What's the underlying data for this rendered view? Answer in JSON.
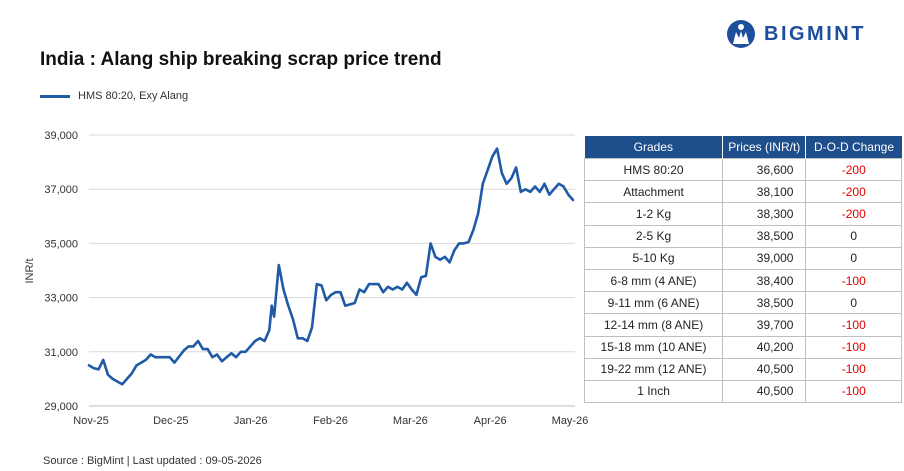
{
  "title": "India : Alang ship breaking scrap price trend",
  "brand": "BIGMINT",
  "source": "Source : BigMint | Last updated : 09-05-2026",
  "colors": {
    "series": "#1f5aa6",
    "header": "#1f4e8c",
    "negative": "#e00000"
  },
  "chart_data": {
    "type": "line",
    "ylabel": "INR/t",
    "ylim": [
      29000,
      39000
    ],
    "yticks": [
      "29,000",
      "31,000",
      "33,000",
      "35,000",
      "37,000",
      "39,000"
    ],
    "xticks": [
      "Nov-25",
      "Dec-25",
      "Jan-26",
      "Feb-26",
      "Mar-26",
      "Apr-26",
      "May-26"
    ],
    "legend_position": "top-left",
    "grid": "horizontal",
    "series": [
      {
        "name": "HMS 80:20, Exy Alang",
        "points": [
          [
            0,
            30500
          ],
          [
            1,
            30400
          ],
          [
            2,
            30350
          ],
          [
            3,
            30700
          ],
          [
            4,
            30150
          ],
          [
            5,
            30000
          ],
          [
            6,
            29900
          ],
          [
            7,
            29800
          ],
          [
            9,
            30200
          ],
          [
            10,
            30500
          ],
          [
            11,
            30600
          ],
          [
            12,
            30700
          ],
          [
            13,
            30900
          ],
          [
            14,
            30800
          ],
          [
            16,
            30800
          ],
          [
            17,
            30800
          ],
          [
            18,
            30600
          ],
          [
            20,
            31050
          ],
          [
            21,
            31200
          ],
          [
            22,
            31200
          ],
          [
            23,
            31400
          ],
          [
            24,
            31100
          ],
          [
            25,
            31100
          ],
          [
            26,
            30800
          ],
          [
            27,
            30900
          ],
          [
            28,
            30650
          ],
          [
            30,
            30950
          ],
          [
            31,
            30800
          ],
          [
            32,
            31000
          ],
          [
            33,
            31000
          ],
          [
            35,
            31400
          ],
          [
            36,
            31500
          ],
          [
            37,
            31400
          ],
          [
            38,
            31800
          ],
          [
            38.5,
            32700
          ],
          [
            39,
            32300
          ],
          [
            40,
            34200
          ],
          [
            41,
            33300
          ],
          [
            42,
            32700
          ],
          [
            43,
            32200
          ],
          [
            44,
            31500
          ],
          [
            45,
            31500
          ],
          [
            46,
            31400
          ],
          [
            47,
            31900
          ],
          [
            48,
            33500
          ],
          [
            49,
            33450
          ],
          [
            50,
            32900
          ],
          [
            51,
            33100
          ],
          [
            52,
            33200
          ],
          [
            53,
            33200
          ],
          [
            54,
            32700
          ],
          [
            55,
            32750
          ],
          [
            56,
            32800
          ],
          [
            57,
            33300
          ],
          [
            58,
            33200
          ],
          [
            59,
            33500
          ],
          [
            60,
            33500
          ],
          [
            61,
            33500
          ],
          [
            62,
            33200
          ],
          [
            63,
            33400
          ],
          [
            64,
            33300
          ],
          [
            65,
            33400
          ],
          [
            66,
            33300
          ],
          [
            67,
            33550
          ],
          [
            68,
            33300
          ],
          [
            69,
            33100
          ],
          [
            70,
            33750
          ],
          [
            71,
            33800
          ],
          [
            72,
            35000
          ],
          [
            73,
            34500
          ],
          [
            74,
            34400
          ],
          [
            75,
            34500
          ],
          [
            76,
            34300
          ],
          [
            77,
            34750
          ],
          [
            78,
            35000
          ],
          [
            79,
            35000
          ],
          [
            80,
            35050
          ],
          [
            81,
            35500
          ],
          [
            82,
            36100
          ],
          [
            83,
            37200
          ],
          [
            84,
            37700
          ],
          [
            85,
            38200
          ],
          [
            86,
            38500
          ],
          [
            87,
            37600
          ],
          [
            88,
            37200
          ],
          [
            89,
            37400
          ],
          [
            90,
            37800
          ],
          [
            91,
            36900
          ],
          [
            92,
            37000
          ],
          [
            93,
            36900
          ],
          [
            94,
            37100
          ],
          [
            95,
            36900
          ],
          [
            96,
            37200
          ],
          [
            97,
            36800
          ],
          [
            98,
            37000
          ],
          [
            99,
            37200
          ],
          [
            100,
            37100
          ],
          [
            101,
            36800
          ],
          [
            102,
            36600
          ]
        ]
      }
    ]
  },
  "table": {
    "headers": [
      "Grades",
      "Prices (INR/t)",
      "D-O-D Change"
    ],
    "rows": [
      {
        "grade": "HMS 80:20",
        "price": "36,600",
        "change": "-200"
      },
      {
        "grade": "Attachment",
        "price": "38,100",
        "change": "-200"
      },
      {
        "grade": "1-2 Kg",
        "price": "38,300",
        "change": "-200"
      },
      {
        "grade": "2-5 Kg",
        "price": "38,500",
        "change": "0"
      },
      {
        "grade": "5-10 Kg",
        "price": "39,000",
        "change": "0"
      },
      {
        "grade": "6-8 mm (4 ANE)",
        "price": "38,400",
        "change": "-100"
      },
      {
        "grade": "9-11 mm (6 ANE)",
        "price": "38,500",
        "change": "0"
      },
      {
        "grade": "12-14 mm (8 ANE)",
        "price": "39,700",
        "change": "-100"
      },
      {
        "grade": "15-18 mm (10 ANE)",
        "price": "40,200",
        "change": "-100"
      },
      {
        "grade": "19-22 mm (12 ANE)",
        "price": "40,500",
        "change": "-100"
      },
      {
        "grade": "1 Inch",
        "price": "40,500",
        "change": "-100"
      }
    ]
  }
}
